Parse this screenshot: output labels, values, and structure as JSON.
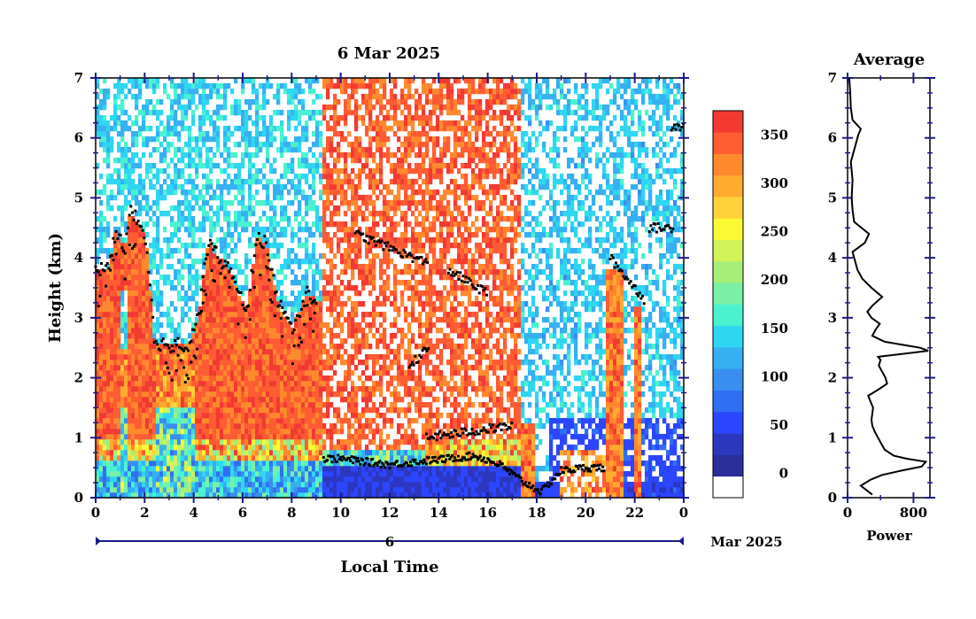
{
  "colors": {
    "axis": "#1a1a8a",
    "frame": "#000000",
    "black_marks": "#000000",
    "profile_line": "#000000"
  },
  "chart_data": [
    {
      "type": "heatmap",
      "title": "6 Mar 2025",
      "xlabel": "Local Time",
      "ylabel": "Height (km)",
      "xlim": [
        0,
        24
      ],
      "ylim": [
        0,
        7
      ],
      "x_tick_labels": [
        "0",
        "2",
        "4",
        "6",
        "8",
        "10",
        "12",
        "14",
        "16",
        "18",
        "20",
        "22",
        "0"
      ],
      "y_tick_labels": [
        "0",
        "1",
        "2",
        "3",
        "4",
        "5",
        "6",
        "7"
      ],
      "date_bar": {
        "day_label": "6",
        "month_label": "Mar 2025"
      },
      "colorbar": {
        "tick_labels": [
          "0",
          "50",
          "100",
          "150",
          "200",
          "250",
          "300",
          "350"
        ],
        "min": 0,
        "max": 380,
        "colors": [
          "#ffffff",
          "#2a2f9c",
          "#2c37c0",
          "#2c46ff",
          "#2f6ff4",
          "#3a8ef0",
          "#36b0f0",
          "#2fd6f2",
          "#4bf2d0",
          "#7af0a6",
          "#a6ee7a",
          "#d2f25a",
          "#fafa33",
          "#ffd23a",
          "#ffab2e",
          "#ff8a2e",
          "#ff5c33",
          "#f23a33"
        ]
      },
      "cloud_top_km": [
        [
          0.0,
          3.8
        ],
        [
          0.5,
          3.8
        ],
        [
          0.8,
          4.4
        ],
        [
          1.2,
          4.2
        ],
        [
          1.4,
          4.8
        ],
        [
          1.9,
          4.5
        ],
        [
          2.1,
          4.2
        ],
        [
          2.4,
          2.6
        ],
        [
          3.0,
          2.55
        ],
        [
          3.8,
          2.55
        ],
        [
          4.2,
          3.0
        ],
        [
          4.6,
          4.3
        ],
        [
          5.0,
          4.0
        ],
        [
          5.5,
          3.8
        ],
        [
          5.8,
          3.4
        ],
        [
          6.2,
          3.2
        ],
        [
          6.6,
          4.4
        ],
        [
          7.0,
          4.2
        ],
        [
          7.4,
          3.3
        ],
        [
          8.0,
          2.8
        ],
        [
          8.6,
          3.4
        ],
        [
          9.0,
          3.3
        ]
      ],
      "cloud_layers_km": [
        {
          "x": [
            10.6,
            13.6
          ],
          "y": [
            4.4,
            3.9
          ]
        },
        {
          "x": [
            14.4,
            16.0
          ],
          "y": [
            3.8,
            3.4
          ]
        },
        {
          "x": [
            12.8,
            13.6
          ],
          "y": [
            2.2,
            2.5
          ]
        },
        {
          "x": [
            13.5,
            17.0
          ],
          "y": [
            1.0,
            1.2
          ]
        },
        {
          "x": [
            21.0,
            22.4
          ],
          "y": [
            4.0,
            3.3
          ]
        },
        {
          "x": [
            22.6,
            23.6
          ],
          "y": [
            4.5,
            4.5
          ]
        },
        {
          "x": [
            23.5,
            24.0
          ],
          "y": [
            6.2,
            6.2
          ]
        }
      ],
      "low_cloud_km": [
        [
          9.3,
          0.65
        ],
        [
          10.0,
          0.65
        ],
        [
          11.0,
          0.6
        ],
        [
          12.0,
          0.55
        ],
        [
          15.5,
          0.7
        ],
        [
          16.5,
          0.55
        ],
        [
          17.5,
          0.25
        ],
        [
          18.2,
          0.1
        ],
        [
          19.0,
          0.45
        ],
        [
          20.0,
          0.5
        ],
        [
          20.8,
          0.5
        ]
      ]
    },
    {
      "type": "line",
      "title": "Average",
      "xlabel": "Power",
      "ylabel": "",
      "xlim": [
        0,
        1000
      ],
      "ylim": [
        0,
        7
      ],
      "x_tick_labels": [
        "0",
        "800"
      ],
      "y_tick_labels": [
        "0",
        "1",
        "2",
        "3",
        "4",
        "5",
        "6",
        "7"
      ],
      "x": [
        300,
        160,
        280,
        420,
        650,
        900,
        950,
        720,
        560,
        450,
        410,
        370,
        330,
        300,
        290,
        300,
        310,
        280,
        250,
        370,
        480,
        460,
        420,
        380,
        400,
        370,
        980,
        880,
        450,
        300,
        340,
        390,
        290,
        240,
        300,
        420,
        290,
        180,
        120,
        80,
        60,
        210,
        260,
        170,
        80,
        60,
        50,
        60,
        40,
        130,
        160,
        60,
        40,
        30,
        20
      ],
      "y": [
        0.05,
        0.2,
        0.3,
        0.38,
        0.45,
        0.52,
        0.6,
        0.65,
        0.7,
        0.8,
        0.9,
        1.0,
        1.1,
        1.2,
        1.3,
        1.4,
        1.5,
        1.6,
        1.7,
        1.8,
        1.9,
        2.0,
        2.1,
        2.2,
        2.3,
        2.35,
        2.45,
        2.5,
        2.6,
        2.7,
        2.8,
        2.9,
        3.0,
        3.1,
        3.2,
        3.35,
        3.5,
        3.65,
        3.8,
        4.0,
        4.1,
        4.25,
        4.4,
        4.5,
        4.6,
        4.8,
        5.0,
        5.3,
        5.6,
        6.05,
        6.15,
        6.3,
        6.5,
        6.8,
        7.0
      ]
    }
  ]
}
